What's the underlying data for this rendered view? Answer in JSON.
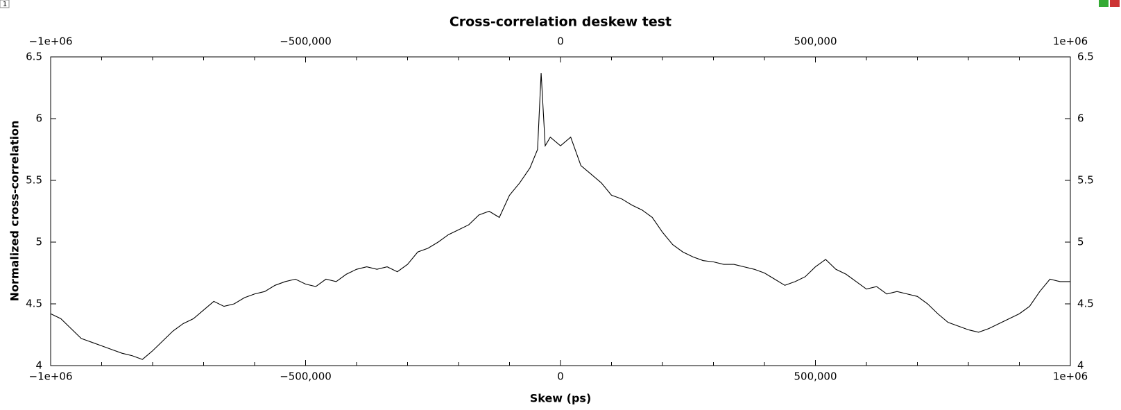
{
  "tab": "1",
  "chart_data": {
    "type": "line",
    "title": "Cross-correlation deskew test",
    "x_label": "Skew (ps)",
    "y_label": "Normalized cross-correlation",
    "x": [
      -1000000,
      -980000,
      -960000,
      -940000,
      -920000,
      -900000,
      -880000,
      -860000,
      -840000,
      -820000,
      -800000,
      -780000,
      -760000,
      -740000,
      -720000,
      -700000,
      -680000,
      -660000,
      -640000,
      -620000,
      -600000,
      -580000,
      -560000,
      -540000,
      -520000,
      -500000,
      -480000,
      -460000,
      -440000,
      -420000,
      -400000,
      -380000,
      -360000,
      -340000,
      -320000,
      -300000,
      -280000,
      -260000,
      -240000,
      -220000,
      -200000,
      -180000,
      -160000,
      -140000,
      -120000,
      -100000,
      -80000,
      -60000,
      -45000,
      -38000,
      -30000,
      -20000,
      0,
      20000,
      40000,
      60000,
      80000,
      100000,
      120000,
      140000,
      160000,
      180000,
      200000,
      220000,
      240000,
      260000,
      280000,
      300000,
      320000,
      340000,
      360000,
      380000,
      400000,
      420000,
      440000,
      460000,
      480000,
      500000,
      520000,
      540000,
      560000,
      580000,
      600000,
      620000,
      640000,
      660000,
      680000,
      700000,
      720000,
      740000,
      760000,
      780000,
      800000,
      820000,
      840000,
      860000,
      880000,
      900000,
      920000,
      940000,
      960000,
      980000,
      1000000
    ],
    "series": [
      {
        "color": "#000000",
        "values": [
          4.42,
          4.38,
          4.3,
          4.22,
          4.19,
          4.16,
          4.13,
          4.1,
          4.08,
          4.05,
          4.12,
          4.2,
          4.28,
          4.34,
          4.38,
          4.45,
          4.52,
          4.48,
          4.5,
          4.55,
          4.58,
          4.6,
          4.65,
          4.68,
          4.7,
          4.66,
          4.64,
          4.7,
          4.68,
          4.74,
          4.78,
          4.8,
          4.78,
          4.8,
          4.76,
          4.82,
          4.92,
          4.95,
          5.0,
          5.06,
          5.1,
          5.14,
          5.22,
          5.25,
          5.2,
          5.38,
          5.48,
          5.6,
          5.75,
          6.37,
          5.78,
          5.85,
          5.78,
          5.85,
          5.62,
          5.55,
          5.48,
          5.38,
          5.35,
          5.3,
          5.26,
          5.2,
          5.08,
          4.98,
          4.92,
          4.88,
          4.85,
          4.84,
          4.82,
          4.82,
          4.8,
          4.78,
          4.75,
          4.7,
          4.65,
          4.68,
          4.72,
          4.8,
          4.86,
          4.78,
          4.74,
          4.68,
          4.62,
          4.64,
          4.58,
          4.6,
          4.58,
          4.56,
          4.5,
          4.42,
          4.35,
          4.32,
          4.29,
          4.27,
          4.3,
          4.34,
          4.38,
          4.42,
          4.48,
          4.6,
          4.7,
          4.68,
          4.68
        ]
      }
    ],
    "xlim": [
      -1000000,
      1000000
    ],
    "xticks": [
      {
        "value": -1000000,
        "label": "−1e+06"
      },
      {
        "value": -500000,
        "label": "−500,000"
      },
      0,
      {
        "value": 500000,
        "label": "500,000"
      },
      {
        "value": 1000000,
        "label": "1e+06"
      }
    ],
    "xminorticks": [
      -900000,
      -800000,
      -700000,
      -600000,
      -400000,
      -300000,
      -200000,
      -100000,
      100000,
      200000,
      300000,
      400000,
      600000,
      700000,
      800000,
      900000
    ],
    "ylim": [
      4,
      6.5
    ],
    "yticks": [
      4,
      4.5,
      5,
      5.5,
      6,
      6.5
    ],
    "grid": false
  }
}
